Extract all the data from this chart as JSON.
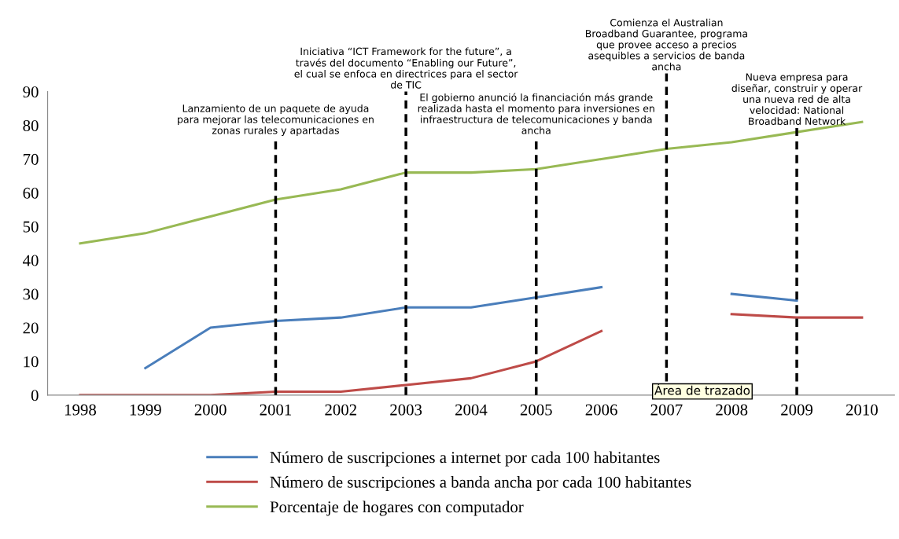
{
  "chart_data": {
    "type": "line",
    "categories": [
      "1998",
      "1999",
      "2000",
      "2001",
      "2002",
      "2003",
      "2004",
      "2005",
      "2006",
      "2007",
      "2008",
      "2009",
      "2010"
    ],
    "series": [
      {
        "name": "Número de suscripciones a internet por cada 100 habitantes",
        "color": "#4a7ebb",
        "values": [
          null,
          8,
          20,
          22,
          23,
          26,
          26,
          29,
          32,
          null,
          30,
          28,
          null
        ]
      },
      {
        "name": "Número de suscripciones a banda ancha por cada 100 habitantes",
        "color": "#be4b48",
        "values": [
          0,
          0,
          0,
          1,
          1,
          3,
          5,
          10,
          19,
          null,
          24,
          23,
          23
        ]
      },
      {
        "name": "Porcentaje de hogares con computador",
        "color": "#98b954",
        "values": [
          45,
          48,
          53,
          58,
          61,
          66,
          66,
          67,
          70,
          73,
          75,
          78,
          81
        ]
      }
    ],
    "ylim": [
      0,
      90
    ],
    "yticks": [
      0,
      10,
      20,
      30,
      40,
      50,
      60,
      70,
      80,
      90
    ],
    "grid": false,
    "legend": "bottom",
    "marker": "none",
    "line_style": "solid",
    "ref_lines": [
      {
        "axis": "x",
        "value": "2001",
        "color": "#000000",
        "line_style": "dashed",
        "label": "Lanzamiento de un paquete de ayuda\npara mejorar las telecomunicaciones en\nzonas rurales y apartadas"
      },
      {
        "axis": "x",
        "value": "2003",
        "color": "#000000",
        "line_style": "dashed",
        "label": "Iniciativa “ICT Framework for the future”, a\ntravés del documento “Enabling our Future”,\nel cual se enfoca en directrices para el sector\nde TIC"
      },
      {
        "axis": "x",
        "value": "2005",
        "color": "#000000",
        "line_style": "dashed",
        "label": "El gobierno anunció la financiación más grande\nrealizada hasta el momento para inversiones en\ninfraestructura de telecomunicaciones y banda\nancha"
      },
      {
        "axis": "x",
        "value": "2007",
        "color": "#000000",
        "line_style": "dashed",
        "label": "Comienza el Australian\nBroadband Guarantee, programa\nque provee acceso a precios\nasequibles a servicios de banda\nancha"
      },
      {
        "axis": "x",
        "value": "2009",
        "color": "#000000",
        "line_style": "dashed",
        "label": "Nueva empresa para\ndiseñar, construir y operar\nuna nueva red de alta\nvelocidad: National\nBroadband Network"
      }
    ],
    "annotations": [
      "Área de trazado"
    ]
  }
}
